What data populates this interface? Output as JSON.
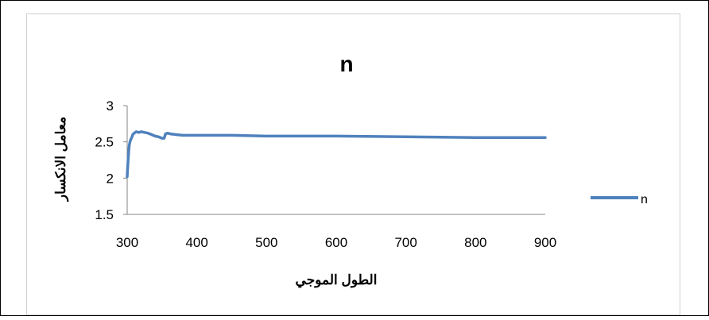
{
  "chart_data": {
    "type": "line",
    "title": "n",
    "xlabel": "الطول الموجي",
    "ylabel": "معامل الانكسار",
    "xlim": [
      300,
      900
    ],
    "ylim": [
      1.5,
      3
    ],
    "x_ticks": [
      300,
      400,
      500,
      600,
      700,
      800,
      900
    ],
    "y_ticks": [
      1.5,
      2,
      2.5,
      3
    ],
    "x_tick_labels": [
      "300",
      "400",
      "500",
      "600",
      "700",
      "800",
      "900"
    ],
    "y_tick_labels": [
      "1.5",
      "2",
      "2.5",
      "3"
    ],
    "grid": false,
    "legend_position": "right",
    "series": [
      {
        "name": "n",
        "color": "#4F81BD",
        "x": [
          300,
          301,
          302,
          303,
          304,
          305,
          306,
          307,
          308,
          310,
          313,
          317,
          320,
          325,
          330,
          335,
          340,
          345,
          350,
          353,
          355,
          358,
          362,
          370,
          380,
          400,
          450,
          500,
          600,
          700,
          800,
          900
        ],
        "y": [
          2.02,
          2.2,
          2.35,
          2.45,
          2.5,
          2.53,
          2.55,
          2.57,
          2.6,
          2.62,
          2.64,
          2.63,
          2.64,
          2.63,
          2.62,
          2.6,
          2.58,
          2.57,
          2.55,
          2.55,
          2.61,
          2.62,
          2.61,
          2.6,
          2.59,
          2.59,
          2.59,
          2.58,
          2.58,
          2.57,
          2.56,
          2.56
        ]
      }
    ]
  }
}
